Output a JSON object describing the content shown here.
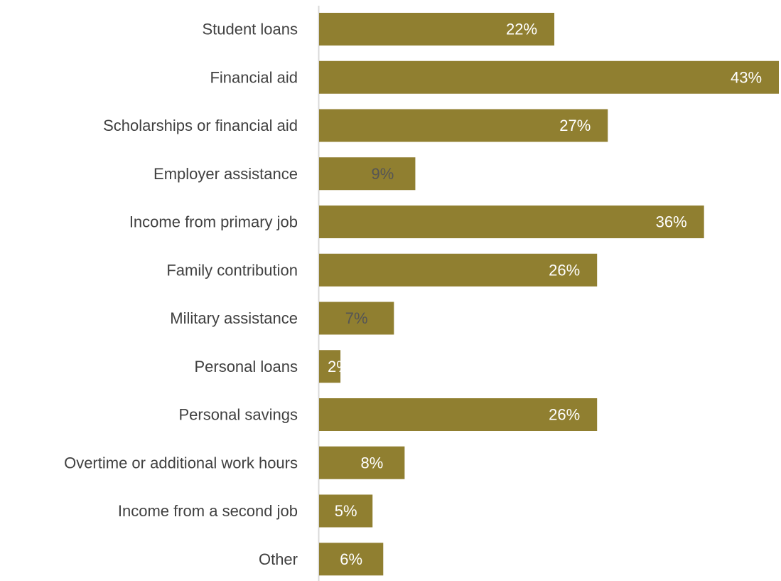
{
  "chart_data": {
    "type": "bar",
    "orientation": "horizontal",
    "categories": [
      "Student loans",
      "Financial aid",
      "Scholarships or financial aid",
      "Employer assistance",
      "Income from primary job",
      "Family contribution",
      "Military assistance",
      "Personal loans",
      "Personal savings",
      "Overtime or additional work hours",
      "Income from a second job",
      "Other"
    ],
    "values": [
      22,
      43,
      27,
      9,
      36,
      26,
      7,
      2,
      26,
      8,
      5,
      6
    ],
    "value_labels": [
      "22%",
      "43%",
      "27%",
      "9%",
      "36%",
      "26%",
      "7%",
      "2%",
      "26%",
      "8%",
      "5%",
      "6%"
    ],
    "xlim": [
      0,
      43
    ],
    "unit": "%",
    "grid": false,
    "legend": "none",
    "colors": {
      "bar": "#907F30",
      "label_light": "#ffffff",
      "label_dark": "#555555",
      "category_text": "#404040",
      "axis": "#d9d9d9"
    }
  }
}
